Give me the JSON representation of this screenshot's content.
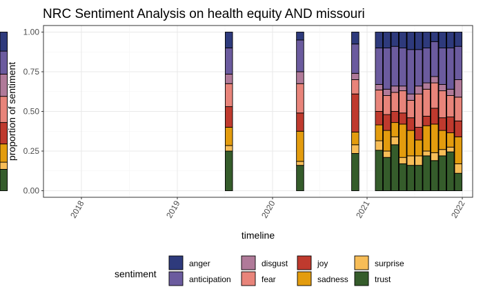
{
  "chart_data": {
    "type": "bar",
    "stacked": true,
    "position": "fill",
    "title": "NRC Sentiment Analysis on health equity AND missouri",
    "xlabel": "timeline",
    "ylabel": "proportion of sentiment",
    "ylim": [
      0,
      1
    ],
    "y_ticks": [
      "0.00",
      "0.25",
      "0.50",
      "0.75",
      "1.00"
    ],
    "x_ticks": [
      "2018",
      "2019",
      "2020",
      "2021",
      "2022"
    ],
    "grid": true,
    "legend": {
      "title": "sentiment",
      "position": "bottom"
    },
    "sentiments": [
      "anger",
      "anticipation",
      "disgust",
      "fear",
      "joy",
      "sadness",
      "surprise",
      "trust"
    ],
    "colors": {
      "anger": "#2e3a7c",
      "anticipation": "#6b5b9e",
      "disgust": "#b07a99",
      "fear": "#e8847a",
      "joy": "#bf3a2e",
      "sadness": "#e39c0e",
      "surprise": "#f7bd57",
      "trust": "#355c2b"
    },
    "bars": [
      {
        "date": "2017-11",
        "values": {
          "trust": 0.135,
          "surprise": 0.045,
          "sadness": 0.115,
          "joy": 0.135,
          "fear": 0.165,
          "disgust": 0.14,
          "anticipation": 0.145,
          "anger": 0.12
        }
      },
      {
        "date": "2019-07",
        "values": {
          "trust": 0.25,
          "surprise": 0.035,
          "sadness": 0.115,
          "joy": 0.13,
          "fear": 0.145,
          "disgust": 0.06,
          "anticipation": 0.165,
          "anger": 0.1
        }
      },
      {
        "date": "2020-04",
        "values": {
          "trust": 0.16,
          "surprise": 0.025,
          "sadness": 0.19,
          "joy": 0.115,
          "fear": 0.185,
          "disgust": 0.075,
          "anticipation": 0.2,
          "anger": 0.05
        }
      },
      {
        "date": "2020-11",
        "values": {
          "trust": 0.235,
          "surprise": 0.055,
          "sadness": 0.08,
          "joy": 0.24,
          "fear": 0.09,
          "disgust": 0.04,
          "anticipation": 0.185,
          "anger": 0.075
        }
      },
      {
        "date": "2021-02",
        "values": {
          "trust": 0.255,
          "surprise": 0.06,
          "sadness": 0.1,
          "joy": 0.085,
          "fear": 0.135,
          "disgust": 0.035,
          "anticipation": 0.23,
          "anger": 0.1
        }
      },
      {
        "date": "2021-03",
        "values": {
          "trust": 0.21,
          "surprise": 0.04,
          "sadness": 0.13,
          "joy": 0.1,
          "fear": 0.12,
          "disgust": 0.04,
          "anticipation": 0.26,
          "anger": 0.1
        }
      },
      {
        "date": "2021-04",
        "values": {
          "trust": 0.29,
          "surprise": 0.05,
          "sadness": 0.09,
          "joy": 0.07,
          "fear": 0.12,
          "disgust": 0.04,
          "anticipation": 0.25,
          "anger": 0.09
        }
      },
      {
        "date": "2021-05",
        "values": {
          "trust": 0.17,
          "surprise": 0.04,
          "sadness": 0.21,
          "joy": 0.07,
          "fear": 0.14,
          "disgust": 0.03,
          "anticipation": 0.24,
          "anger": 0.1
        }
      },
      {
        "date": "2021-06",
        "values": {
          "trust": 0.16,
          "surprise": 0.06,
          "sadness": 0.16,
          "joy": 0.08,
          "fear": 0.11,
          "disgust": 0.04,
          "anticipation": 0.28,
          "anger": 0.11
        }
      },
      {
        "date": "2021-07",
        "values": {
          "trust": 0.16,
          "surprise": 0.06,
          "sadness": 0.1,
          "joy": 0.08,
          "fear": 0.21,
          "disgust": 0.05,
          "anticipation": 0.23,
          "anger": 0.11
        }
      },
      {
        "date": "2021-08",
        "values": {
          "trust": 0.22,
          "surprise": 0.03,
          "sadness": 0.16,
          "joy": 0.06,
          "fear": 0.17,
          "disgust": 0.04,
          "anticipation": 0.22,
          "anger": 0.1
        }
      },
      {
        "date": "2021-09",
        "values": {
          "trust": 0.19,
          "surprise": 0.05,
          "sadness": 0.18,
          "joy": 0.1,
          "fear": 0.16,
          "disgust": 0.04,
          "anticipation": 0.22,
          "anger": 0.06
        }
      },
      {
        "date": "2021-10",
        "values": {
          "trust": 0.22,
          "surprise": 0.04,
          "sadness": 0.12,
          "joy": 0.08,
          "fear": 0.17,
          "disgust": 0.04,
          "anticipation": 0.23,
          "anger": 0.1
        }
      },
      {
        "date": "2021-11",
        "values": {
          "trust": 0.245,
          "surprise": 0.03,
          "sadness": 0.09,
          "joy": 0.1,
          "fear": 0.135,
          "disgust": 0.04,
          "anticipation": 0.26,
          "anger": 0.1
        }
      },
      {
        "date": "2021-12",
        "values": {
          "trust": 0.11,
          "surprise": 0.06,
          "sadness": 0.17,
          "joy": 0.1,
          "fear": 0.15,
          "disgust": 0.11,
          "anticipation": 0.21,
          "anger": 0.09
        }
      }
    ]
  }
}
